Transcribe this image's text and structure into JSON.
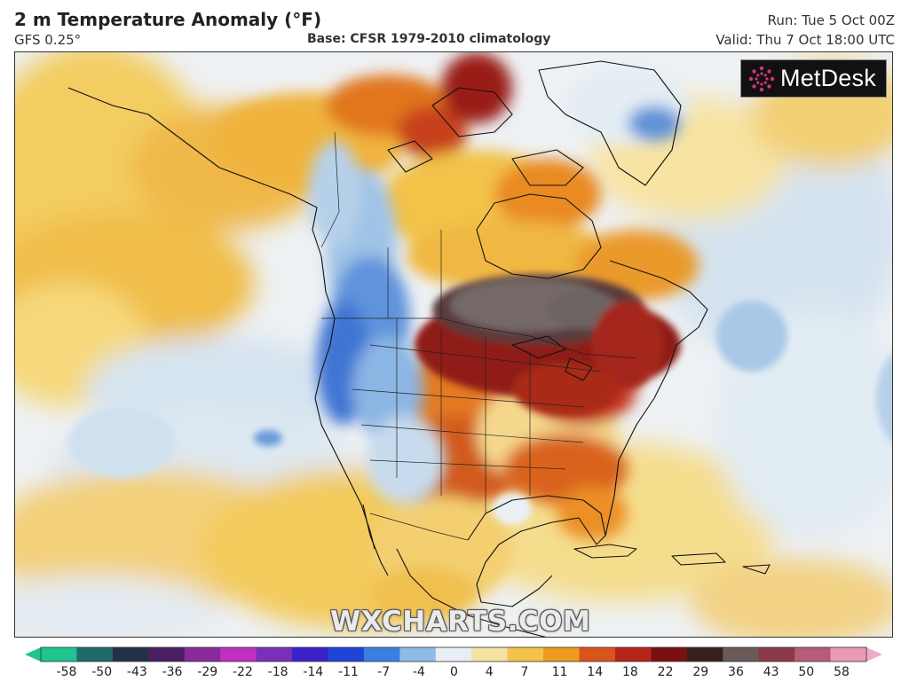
{
  "header": {
    "title": "2 m Temperature Anomaly (°F)",
    "model": "GFS 0.25°",
    "base": "Base: CFSR 1979-2010 climatology",
    "run": "Run: Tue 5 Oct 00Z",
    "valid": "Valid: Thu 7 Oct 18:00 UTC"
  },
  "logo": {
    "text": "MetDesk",
    "icon": "starburst-icon"
  },
  "watermark": "WXCHARTS.COM",
  "colorbar": {
    "ticks": [
      "-58",
      "-50",
      "-43",
      "-36",
      "-29",
      "-22",
      "-18",
      "-14",
      "-11",
      "-7",
      "-4",
      "0",
      "4",
      "7",
      "11",
      "14",
      "18",
      "22",
      "29",
      "36",
      "43",
      "50",
      "58"
    ],
    "colors": [
      "#1fc48f",
      "#1f6a6a",
      "#22304a",
      "#4b1f63",
      "#8a2a9a",
      "#c02fc0",
      "#7a2fb8",
      "#3a22c8",
      "#1f45d8",
      "#3a7fe0",
      "#8fbbe6",
      "#e8eef4",
      "#f4e2a0",
      "#f3c24a",
      "#ee9a1f",
      "#d9541a",
      "#b5251a",
      "#7a1010",
      "#3a1f1f",
      "#6a5a5a",
      "#8a3a4a",
      "#b85a7a",
      "#e89ab8"
    ],
    "arrows": {
      "low": "#1fc48f",
      "high": "#f2a8c8"
    }
  },
  "map": {
    "ocean_base": "#eef1f4",
    "palette": {
      "cool_light": "#d5e4f0",
      "cool_mid": "#9ec2e4",
      "cool_deep": "#4a82d2",
      "warm_light": "#f7e5a8",
      "warm_mid": "#f2c34f",
      "warm_orange": "#ec9128",
      "hot": "#cf4a1a",
      "hotter": "#9a1a12",
      "extreme": "#4a3434",
      "extreme_gray": "#6b6060"
    }
  }
}
